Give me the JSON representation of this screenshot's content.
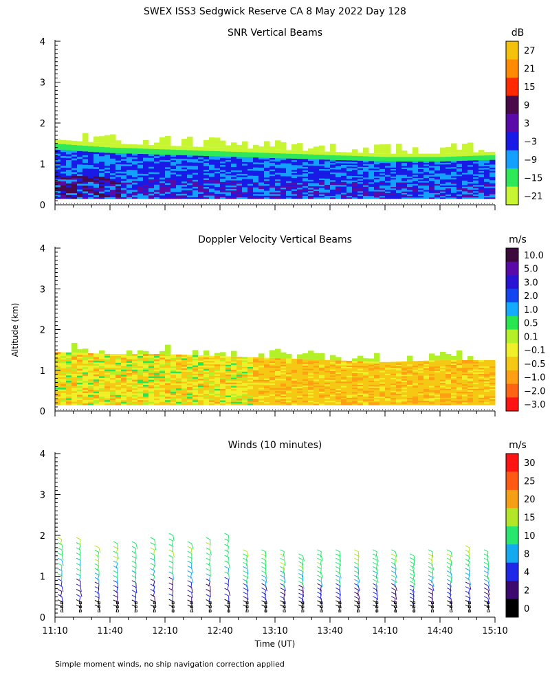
{
  "page_title": "SWEX ISS3 Sedgwick Reserve CA   8 May 2022 Day 128",
  "ylabel": "Altitude (km)",
  "xlabel": "Time (UT)",
  "footnote": "Simple moment winds, no ship navigation correction applied",
  "chart_data": [
    {
      "type": "heatmap",
      "title": "SNR Vertical Beams",
      "ylim": [
        0,
        4
      ],
      "yticks": [
        "0",
        "1",
        "2",
        "3",
        "4"
      ],
      "xlim": [
        "11:10",
        "15:10"
      ],
      "xticks": [
        "11:10",
        "11:40",
        "12:10",
        "12:40",
        "13:10",
        "13:40",
        "14:10",
        "14:40",
        "15:10"
      ],
      "show_x_labels": false,
      "colorbar": {
        "unit": "dB",
        "labels": [
          "27",
          "21",
          "15",
          "9",
          "3",
          "−3",
          "−9",
          "−15",
          "−21"
        ],
        "colors": [
          "#f4c20a",
          "#ff8c00",
          "#ff2a00",
          "#4a0a4a",
          "#5a0aa8",
          "#1a1ae6",
          "#14a0ff",
          "#2ee85a",
          "#c8f532"
        ]
      },
      "layer_top_km": [
        1.6,
        1.5,
        1.45,
        1.4,
        1.35,
        1.3,
        1.25,
        1.25,
        1.3
      ]
    },
    {
      "type": "heatmap",
      "title": "Doppler Velocity Vertical Beams",
      "ylim": [
        0,
        4
      ],
      "yticks": [
        "0",
        "1",
        "2",
        "3",
        "4"
      ],
      "xlim": [
        "11:10",
        "15:10"
      ],
      "xticks": [
        "11:10",
        "11:40",
        "12:10",
        "12:40",
        "13:10",
        "13:40",
        "14:10",
        "14:40",
        "15:10"
      ],
      "show_x_labels": false,
      "colorbar": {
        "unit": "m/s",
        "labels": [
          "10.0",
          "5.0",
          "3.0",
          "2.0",
          "1.0",
          "0.5",
          "0.1",
          "−0.1",
          "−0.5",
          "−1.0",
          "−2.0",
          "−3.0"
        ],
        "colors": [
          "#3c0a3c",
          "#5a0aa8",
          "#2814d2",
          "#1446f0",
          "#14aaff",
          "#28e650",
          "#b4f028",
          "#f0f028",
          "#f5c814",
          "#ffa014",
          "#ff6414",
          "#ff1414"
        ]
      },
      "layer_top_km": [
        1.45,
        1.4,
        1.4,
        1.35,
        1.3,
        1.25,
        1.2,
        1.25,
        1.25
      ]
    },
    {
      "type": "wind-barbs",
      "title": "Winds (10 minutes)",
      "ylim": [
        0,
        4
      ],
      "yticks": [
        "0",
        "1",
        "2",
        "3",
        "4"
      ],
      "xlim": [
        "11:10",
        "15:10"
      ],
      "xticks": [
        "11:10",
        "11:40",
        "12:10",
        "12:40",
        "13:10",
        "13:40",
        "14:10",
        "14:40",
        "15:10"
      ],
      "show_x_labels": true,
      "colorbar": {
        "unit": "m/s",
        "labels": [
          "30",
          "25",
          "20",
          "15",
          "10",
          "8",
          "4",
          "2",
          "0"
        ],
        "colors": [
          "#ff1414",
          "#ff5a14",
          "#f5a014",
          "#b4e628",
          "#28e66e",
          "#14aaf0",
          "#1e28e6",
          "#3c0a6e",
          "#000000"
        ]
      },
      "profile_count": 24,
      "profile_top_km": [
        1.9,
        1.9,
        1.7,
        1.8,
        1.8,
        1.9,
        2.0,
        1.8,
        1.9,
        2.0,
        1.6,
        1.6,
        1.6,
        1.5,
        1.6,
        1.6,
        1.6,
        1.6,
        1.6,
        1.5,
        1.6,
        1.6,
        1.7,
        1.6
      ]
    }
  ]
}
